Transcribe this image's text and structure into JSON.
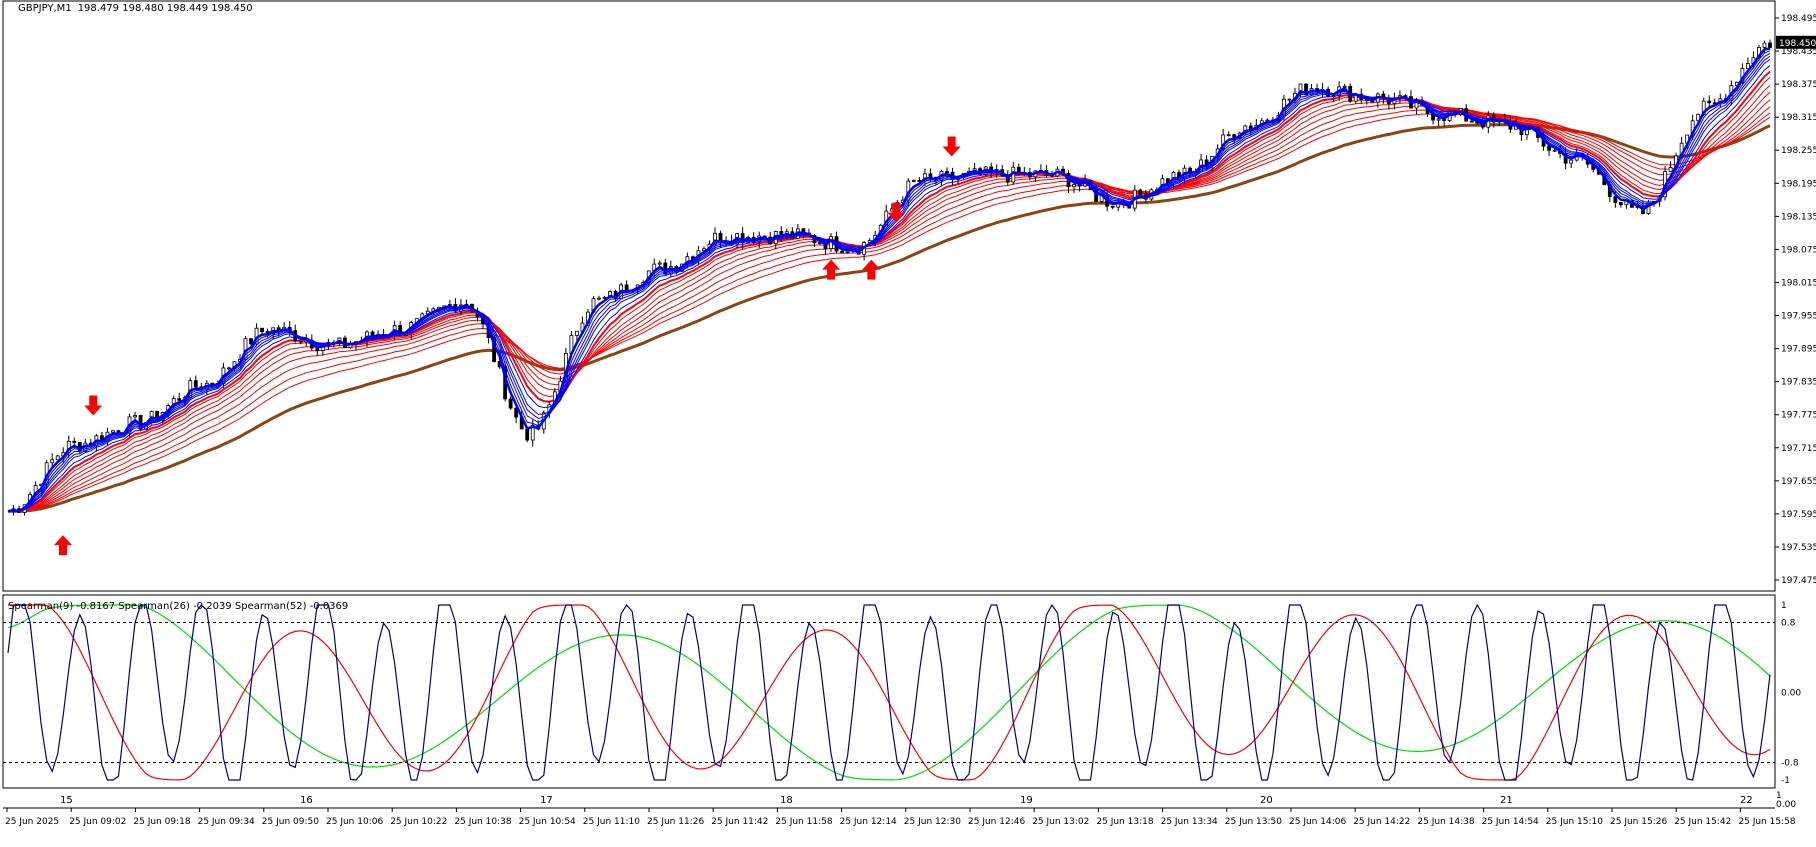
{
  "header": {
    "symbol": "GBPJPY,M1",
    "ohlc": "198.479 198.480 198.449 198.450"
  },
  "price_axis": {
    "labels": [
      "198.495",
      "198.435",
      "198.375",
      "198.315",
      "198.255",
      "198.195",
      "198.135",
      "198.075",
      "198.015",
      "197.955",
      "197.895",
      "197.835",
      "197.775",
      "197.715",
      "197.655",
      "197.595",
      "197.535",
      "197.475"
    ],
    "current_price": "198.450"
  },
  "indicator": {
    "legend": "Spearman(9) -0.8167  Spearman(26) -0.2039  Spearman(52) -0.0369",
    "axis_labels": [
      "1",
      "0.8",
      "0.00",
      "-0.8",
      "-1"
    ],
    "bottom_labels": [
      "1",
      "0.00"
    ]
  },
  "time_axis": {
    "top_row": [
      "15",
      "16",
      "17",
      "18",
      "19",
      "20",
      "21",
      "22"
    ],
    "bottom_row": [
      "25 Jun 2025",
      "25 Jun 09:02",
      "25 Jun 09:18",
      "25 Jun 09:34",
      "25 Jun 09:50",
      "25 Jun 10:06",
      "25 Jun 10:22",
      "25 Jun 10:38",
      "25 Jun 10:54",
      "25 Jun 11:10",
      "25 Jun 11:26",
      "25 Jun 11:42",
      "25 Jun 11:58",
      "25 Jun 12:14",
      "25 Jun 12:30",
      "25 Jun 12:46",
      "25 Jun 13:02",
      "25 Jun 13:18",
      "25 Jun 13:34",
      "25 Jun 13:50",
      "25 Jun 14:06",
      "25 Jun 14:22",
      "25 Jun 14:38",
      "25 Jun 14:54",
      "25 Jun 15:10",
      "25 Jun 15:26",
      "25 Jun 15:42",
      "25 Jun 15:58"
    ]
  },
  "colors": {
    "candles": "#000000",
    "fast_ma": "#0000ff",
    "slow_ma": "#ff0000",
    "long_ma": "#8b4513",
    "arrows": "#ff0000",
    "spearman9": "#00008b",
    "spearman26": "#ff0000",
    "spearman52": "#00dd00"
  },
  "chart_data": {
    "type": "line",
    "xlabel": "",
    "ylabel": "",
    "ylim": [
      197.475,
      198.495
    ],
    "grid": false,
    "series": [
      {
        "name": "",
        "x": [
          "25 Jun 2025",
          "25 Jun 09:02",
          "25 Jun 09:18",
          "25 Jun 09:34",
          "25 Jun 09:50",
          "25 Jun 10:06",
          "25 Jun 10:22",
          "25 Jun 10:38",
          "25 Jun 10:54",
          "25 Jun 11:10",
          "25 Jun 11:26",
          "25 Jun 11:42",
          "25 Jun 11:58",
          "25 Jun 12:14",
          "25 Jun 12:30",
          "25 Jun 12:46",
          "25 Jun 13:02",
          "25 Jun 13:18",
          "25 Jun 13:34",
          "25 Jun 13:50",
          "25 Jun 14:06",
          "25 Jun 14:22",
          "25 Jun 14:38",
          "25 Jun 14:54",
          "25 Jun 15:10",
          "25 Jun 15:26",
          "25 Jun 15:42",
          "25 Jun 15:58"
        ],
        "values": [
          197.6,
          197.72,
          197.76,
          197.83,
          197.93,
          197.9,
          197.93,
          197.98,
          197.74,
          197.98,
          198.04,
          198.1,
          198.1,
          198.08,
          198.2,
          198.21,
          198.21,
          198.16,
          198.21,
          198.3,
          198.37,
          198.35,
          198.32,
          198.3,
          198.24,
          198.14,
          198.33,
          198.45
        ]
      }
    ],
    "arrows_down": [
      {
        "x": "25 Jun 09:02",
        "y": 197.77
      },
      {
        "x": "25 Jun 12:14",
        "y": 198.12
      },
      {
        "x": "25 Jun 12:30",
        "y": 198.24
      }
    ],
    "arrows_up": [
      {
        "x": "25 Jun 2025",
        "y": 197.56
      },
      {
        "x": "25 Jun 11:58",
        "y": 198.06
      },
      {
        "x": "25 Jun 12:14",
        "y": 198.06
      }
    ],
    "indicator": {
      "ylim": [
        -1,
        1
      ],
      "levels": [
        0.8,
        0.0,
        -0.8
      ],
      "last_values": {
        "spearman9": -0.8167,
        "spearman26": -0.2039,
        "spearman52": -0.0369
      }
    }
  }
}
